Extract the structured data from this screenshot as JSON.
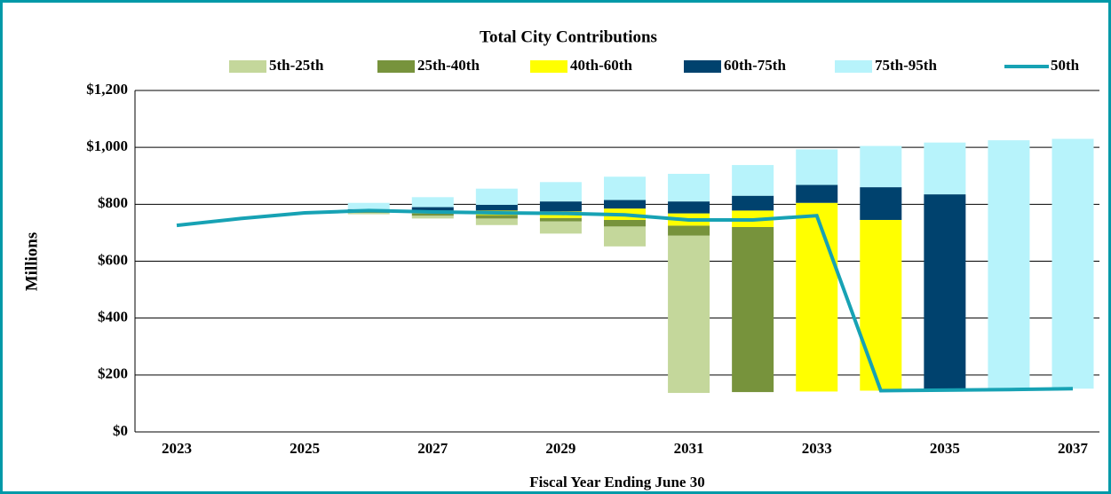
{
  "chart_data": {
    "type": "bar",
    "title": "Total City Contributions",
    "ylabel": "Millions",
    "xlabel": "Fiscal Year Ending June 30",
    "categories": [
      "2023",
      null,
      "2025",
      null,
      "2027",
      null,
      "2029",
      null,
      "2031",
      null,
      "2033",
      null,
      "2035",
      null,
      "2037"
    ],
    "ylim": [
      0,
      1200
    ],
    "yticks": [
      {
        "value": 0,
        "label": "$0"
      },
      {
        "value": 200,
        "label": "$200"
      },
      {
        "value": 400,
        "label": "$400"
      },
      {
        "value": 600,
        "label": "$600"
      },
      {
        "value": 800,
        "label": "$800"
      },
      {
        "value": 1000,
        "label": "$1,000"
      },
      {
        "value": 1200,
        "label": "$1,200"
      }
    ],
    "grid": true,
    "series": [
      {
        "name": "5th-25th",
        "color": "#c4d79b",
        "values": [
          null,
          null,
          null,
          [
            765,
            770
          ],
          [
            750,
            760
          ],
          [
            727,
            750
          ],
          [
            697,
            740
          ],
          [
            652,
            722
          ],
          [
            137,
            690
          ],
          null,
          null,
          null,
          null,
          null,
          null
        ]
      },
      {
        "name": "25th-40th",
        "color": "#77933c",
        "values": [
          null,
          null,
          null,
          [
            770,
            773
          ],
          [
            760,
            768
          ],
          [
            750,
            762
          ],
          [
            740,
            752
          ],
          [
            722,
            745
          ],
          [
            690,
            725
          ],
          [
            140,
            720
          ],
          null,
          null,
          null,
          null,
          null
        ]
      },
      {
        "name": "40th-60th",
        "color": "#ffff00",
        "values": [
          null,
          null,
          null,
          [
            773,
            778
          ],
          [
            768,
            778
          ],
          [
            762,
            778
          ],
          [
            752,
            775
          ],
          [
            745,
            785
          ],
          [
            725,
            768
          ],
          [
            720,
            778
          ],
          [
            142,
            805
          ],
          [
            145,
            745
          ],
          null,
          null,
          null
        ]
      },
      {
        "name": "60th-75th",
        "color": "#00426e",
        "values": [
          null,
          null,
          null,
          [
            778,
            783
          ],
          [
            778,
            790
          ],
          [
            778,
            798
          ],
          [
            775,
            810
          ],
          [
            785,
            815
          ],
          [
            768,
            810
          ],
          [
            778,
            830
          ],
          [
            805,
            868
          ],
          [
            745,
            860
          ],
          [
            148,
            835
          ],
          null,
          null
        ]
      },
      {
        "name": "75th-95th",
        "color": "#b7f3fb",
        "values": [
          null,
          null,
          null,
          [
            783,
            805
          ],
          [
            790,
            825
          ],
          [
            798,
            855
          ],
          [
            810,
            878
          ],
          [
            815,
            897
          ],
          [
            810,
            907
          ],
          [
            830,
            938
          ],
          [
            868,
            993
          ],
          [
            860,
            1005
          ],
          [
            835,
            1017
          ],
          [
            150,
            1025
          ],
          [
            152,
            1030
          ]
        ]
      },
      {
        "name": "50th",
        "color": "#17a2b4",
        "type": "line",
        "values": [
          726,
          750,
          770,
          778,
          773,
          770,
          768,
          763,
          745,
          745,
          760,
          145,
          147,
          149,
          152
        ]
      }
    ]
  }
}
